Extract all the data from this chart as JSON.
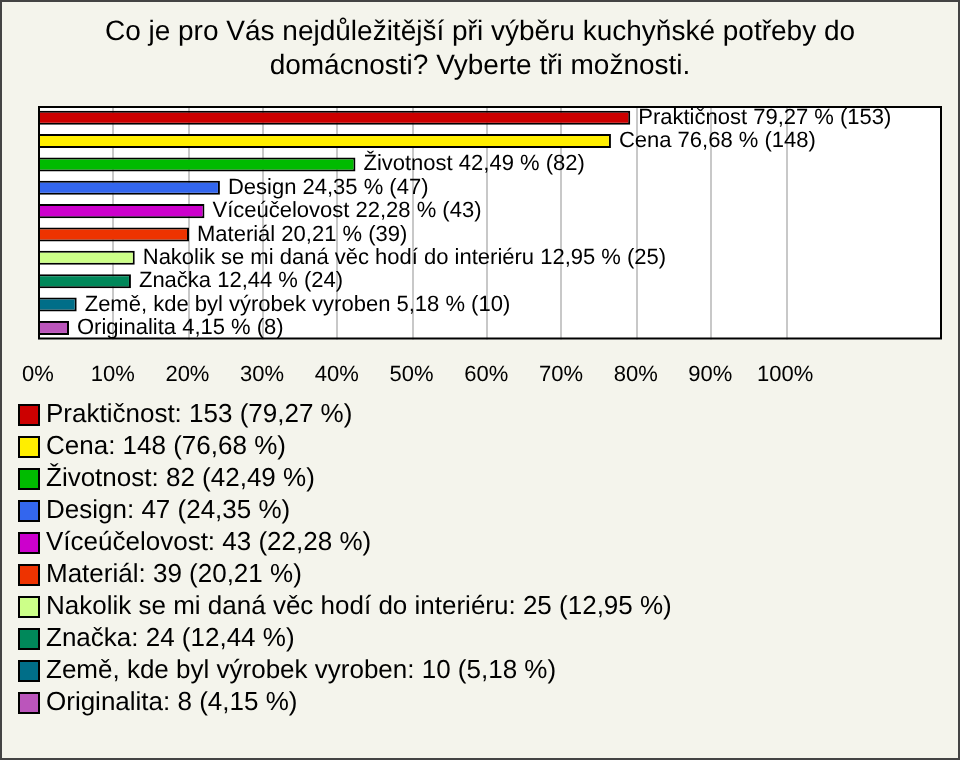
{
  "chart_data": {
    "type": "bar",
    "orientation": "horizontal",
    "title": "Co je pro Vás nejdůležitější při výběru kuchyňské potřeby do domácnosti? Vyberte tři možnosti.",
    "categories": [
      "Praktičnost",
      "Cena",
      "Životnost",
      "Design",
      "Víceúčelovost",
      "Materiál",
      "Nakolik se mi daná věc hodí do interiéru",
      "Značka",
      "Země, kde byl výrobek vyroben",
      "Originalita"
    ],
    "values": [
      79.27,
      76.68,
      42.49,
      24.35,
      22.28,
      20.21,
      12.95,
      12.44,
      5.18,
      4.15
    ],
    "colors": [
      "#cc0000",
      "#ffee00",
      "#00bb00",
      "#3366ee",
      "#cc00cc",
      "#ee3300",
      "#ccff88",
      "#00885a",
      "#006e88",
      "#bb55bb"
    ],
    "value_labels": [
      "79,27 % (153)",
      "76,68 % (148)",
      "42,49 % (82)",
      "24,35 % (47)",
      "22,28 % (43)",
      "20,21 % (39)",
      "12,95 % (25)",
      "12,44 % (24)",
      "5,18 % (10)",
      "4,15 % (8)"
    ],
    "xlim": [
      0,
      121
    ],
    "xticks": [
      {
        "value": 0,
        "label": "0%"
      },
      {
        "value": 10,
        "label": "10%"
      },
      {
        "value": 20,
        "label": "20%"
      },
      {
        "value": 30,
        "label": "30%"
      },
      {
        "value": 40,
        "label": "40%"
      },
      {
        "value": 50,
        "label": "50%"
      },
      {
        "value": 60,
        "label": "60%"
      },
      {
        "value": 70,
        "label": "70%"
      },
      {
        "value": 80,
        "label": "80%"
      },
      {
        "value": 90,
        "label": "90%"
      },
      {
        "value": 100,
        "label": "100%"
      }
    ],
    "grid": "x",
    "tick_labels": "x",
    "annotations": [
      "Praktičnost: 153 (79,27 %)",
      "Cena: 148 (76,68 %)",
      "Životnost: 82 (42,49 %)",
      "Design: 47 (24,35 %)",
      "Víceúčelovost: 43 (22,28 %)",
      "Materiál: 39 (20,21 %)",
      "Nakolik se mi daná věc hodí do interiéru: 25 (12,95 %)",
      "Značka: 24 (12,44 %)",
      "Země, kde byl výrobek vyroben: 10 (5,18 %)",
      "Originalita: 8 (4,15 %)"
    ]
  }
}
